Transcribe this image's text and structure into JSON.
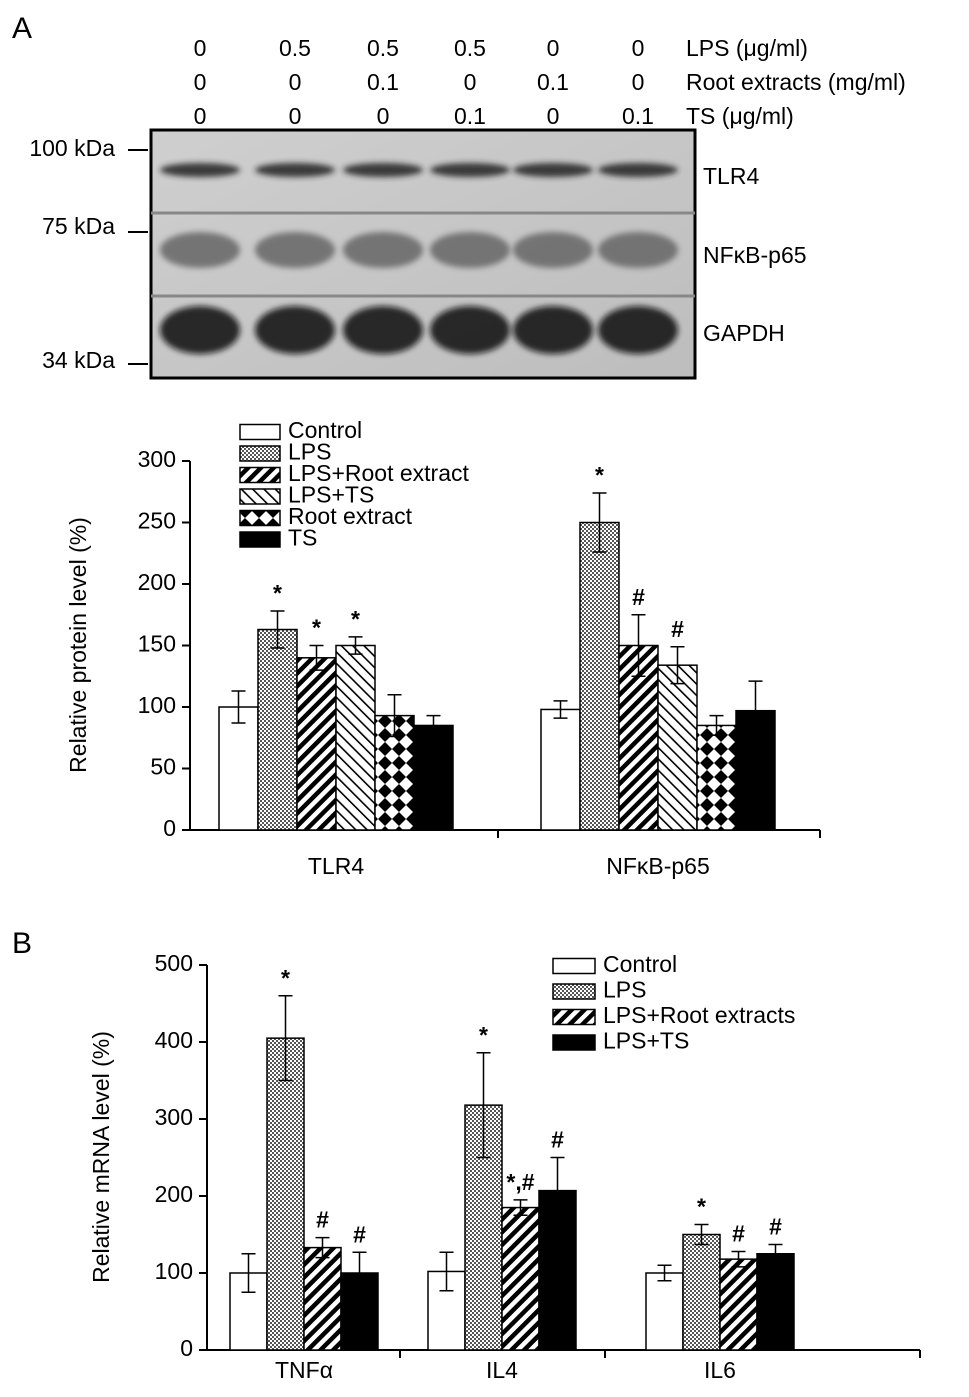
{
  "panel_labels": [
    "A",
    "B"
  ],
  "blot": {
    "conditions": [
      {
        "label": "LPS (μg/ml)",
        "values": [
          0,
          0.5,
          0.5,
          0.5,
          0,
          0
        ]
      },
      {
        "label": "Root extracts (mg/ml)",
        "values": [
          0,
          0,
          0.1,
          0,
          0.1,
          0
        ]
      },
      {
        "label": "TS (μg/ml)",
        "values": [
          0,
          0,
          0,
          0.1,
          0,
          0.1
        ]
      }
    ],
    "markers": [
      "100 kDa",
      "75 kDa",
      "34 kDa"
    ],
    "bands": [
      "TLR4",
      "NFκB-p65",
      "GAPDH"
    ]
  },
  "chart_data": [
    {
      "type": "bar",
      "y_label": "Relative protein level (%)",
      "categories": [
        "TLR4",
        "NFκB-p65"
      ],
      "ylim": [
        0,
        300
      ],
      "yticks": [
        0,
        50,
        100,
        150,
        200,
        250,
        300
      ],
      "series": [
        {
          "name": "Control",
          "color": "#ffffff",
          "pattern": "solid",
          "values": [
            100,
            98
          ],
          "errors": [
            13,
            7
          ],
          "annotations": [
            null,
            null
          ]
        },
        {
          "name": "LPS",
          "color": "#888888",
          "pattern": "dots",
          "values": [
            163,
            250
          ],
          "errors": [
            15,
            24
          ],
          "annotations": [
            "*",
            "*"
          ]
        },
        {
          "name": "LPS+Root extract",
          "color": "#000000",
          "pattern": "backslash",
          "values": [
            140,
            150
          ],
          "errors": [
            10,
            25
          ],
          "annotations": [
            "*",
            "#"
          ]
        },
        {
          "name": "LPS+TS",
          "color": "#555555",
          "pattern": "slash",
          "values": [
            150,
            134
          ],
          "errors": [
            7,
            15
          ],
          "annotations": [
            "*",
            "#"
          ]
        },
        {
          "name": "Root extract",
          "color": "#000000",
          "pattern": "diamonds",
          "values": [
            93,
            85
          ],
          "errors": [
            17,
            8
          ],
          "annotations": [
            null,
            null
          ]
        },
        {
          "name": "TS",
          "color": "#000000",
          "pattern": "solid",
          "values": [
            85,
            97
          ],
          "errors": [
            8,
            24
          ],
          "annotations": [
            null,
            null
          ]
        }
      ]
    },
    {
      "type": "bar",
      "y_label": "Relative mRNA level (%)",
      "categories": [
        "TNFα",
        "IL4",
        "IL6"
      ],
      "ylim": [
        0,
        500
      ],
      "yticks": [
        0,
        100,
        200,
        300,
        400,
        500
      ],
      "series": [
        {
          "name": "Control",
          "color": "#ffffff",
          "pattern": "solid",
          "values": [
            100,
            102,
            100
          ],
          "errors": [
            25,
            25,
            10
          ],
          "annotations": [
            null,
            null,
            null
          ]
        },
        {
          "name": "LPS",
          "color": "#888888",
          "pattern": "dots",
          "values": [
            405,
            318,
            150
          ],
          "errors": [
            55,
            68,
            13
          ],
          "annotations": [
            "*",
            "*",
            "*"
          ]
        },
        {
          "name": "LPS+Root extracts",
          "color": "#000000",
          "pattern": "backslash",
          "values": [
            133,
            185,
            118
          ],
          "errors": [
            13,
            10,
            10
          ],
          "annotations": [
            "#",
            "*,#",
            "#"
          ]
        },
        {
          "name": "LPS+TS",
          "color": "#000000",
          "pattern": "solid",
          "values": [
            100,
            207,
            125
          ],
          "errors": [
            27,
            43,
            12
          ],
          "annotations": [
            "#",
            "#",
            "#"
          ]
        }
      ]
    }
  ]
}
